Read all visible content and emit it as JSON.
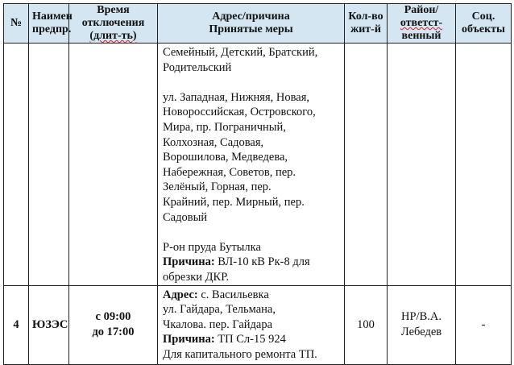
{
  "header": {
    "num": "№",
    "company": "Наимен предпр.",
    "time": [
      "Время",
      "отключения",
      "(длит-ть)"
    ],
    "address": [
      "Адрес/причина",
      "Принятые меры"
    ],
    "residents": "Кол-во жит-й",
    "district": [
      "Район/",
      "ответст-",
      "венный"
    ],
    "social": "Соц. объекты"
  },
  "rows": [
    {
      "num": "",
      "company": "",
      "time": "",
      "address_lines": [
        "Семейный, Детский, Братский,",
        "Родительский",
        "",
        "ул. Западная, Нижняя, Новая,",
        "Новороссийская, Островского,",
        "Мира, пр. Пограничный,",
        "Колхозная, Садовая,",
        "Ворошилова, Медведева,",
        "Набережная, Советов, пер.",
        "Зелёный, Горная, пер.",
        "Крайний, пер. Мирный, пер.",
        "Садовый",
        "",
        "Р-он пруда Бутылка"
      ],
      "reason_label": "Причина:",
      "reason_lines": [
        " ВЛ-10 кВ Рк-8 для",
        "обрезки ДКР."
      ],
      "residents": "",
      "district": "",
      "social": ""
    },
    {
      "num": "4",
      "company": "ЮЗЭС",
      "time": [
        "с 09:00",
        "до 17:00"
      ],
      "address_label": "Адрес:",
      "address_lines": [
        " с. Васильевка",
        "ул. Гайдара, Тельмана,",
        "Чкалова. пер. Гайдара"
      ],
      "reason_label": "Причина:",
      "reason_lines": [
        " ТП Сл-15 924",
        "Для капитального ремонта ТП."
      ],
      "residents": "100",
      "district": [
        "НР/В.А.",
        "Лебедев"
      ],
      "social": "-"
    }
  ]
}
